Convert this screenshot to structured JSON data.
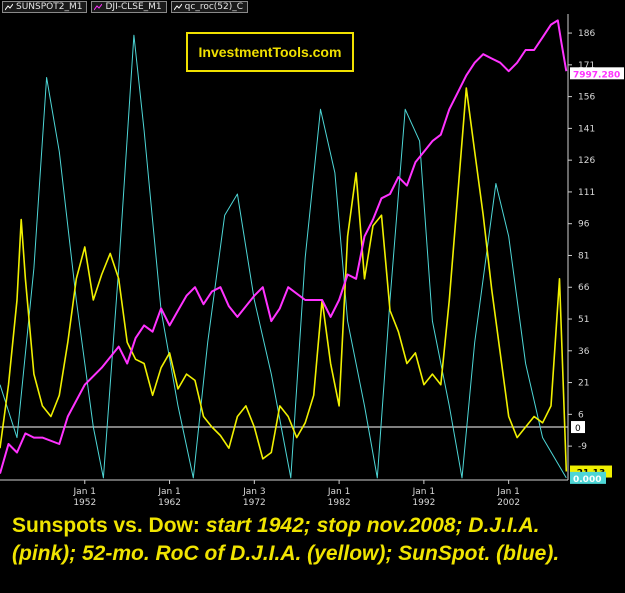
{
  "legend": [
    {
      "label": "SUNSPOT2_M1",
      "color": "#ffffff"
    },
    {
      "label": "DJI-CLSE_M1",
      "color": "#ff33ff"
    },
    {
      "label": "qc_roc(52)_C",
      "color": "#ffffff"
    }
  ],
  "brand": "InvestmentTools.com",
  "caption": {
    "p1": "Sunspots vs. Dow: ",
    "p2": "start 1942; stop nov.2008;  D.J.I.A.",
    "p3": "(pink); 52-mo. RoC of D.J.I.A. (yellow); SunSpot. (blue)."
  },
  "colors": {
    "djia": "#ff33ff",
    "roc": "#f0f000",
    "sunspot": "#4dd6d6",
    "zero": "#ffffff"
  },
  "chart_data": {
    "type": "line",
    "x_tick_labels": [
      {
        "year": 1952,
        "top": "Jan 1",
        "bottom": "1952"
      },
      {
        "year": 1962,
        "top": "Jan 1",
        "bottom": "1962"
      },
      {
        "year": 1972,
        "top": "Jan 3",
        "bottom": "1972"
      },
      {
        "year": 1982,
        "top": "Jan 1",
        "bottom": "1982"
      },
      {
        "year": 1992,
        "top": "Jan 1",
        "bottom": "1992"
      },
      {
        "year": 2002,
        "top": "Jan 1",
        "bottom": "2002"
      }
    ],
    "xlim": [
      1942,
      2009
    ],
    "ylim": [
      -25,
      195
    ],
    "y_ticks": [
      "-9",
      "6",
      "21",
      "36",
      "51",
      "66",
      "81",
      "96",
      "111",
      "126",
      "141",
      "156",
      "171",
      "186"
    ],
    "zero_label": "0",
    "end_labels": [
      {
        "series": "djia",
        "text": "7997.280",
        "y": 167
      },
      {
        "series": "roc",
        "text": "-21.13",
        "y": -21
      },
      {
        "series": "sunspot",
        "text": "0.000",
        "y": -24
      }
    ],
    "series": [
      {
        "key": "djia",
        "x": [
          1942,
          1943,
          1944,
          1945,
          1946,
          1947,
          1949,
          1950,
          1952,
          1954,
          1956,
          1957,
          1958,
          1959,
          1960,
          1961,
          1962,
          1963,
          1964,
          1965,
          1966,
          1967,
          1968,
          1969,
          1970,
          1972,
          1973,
          1974,
          1975,
          1976,
          1978,
          1980,
          1981,
          1982,
          1983,
          1984,
          1985,
          1986,
          1987,
          1988,
          1989,
          1990,
          1991,
          1992,
          1993,
          1994,
          1995,
          1996,
          1997,
          1998,
          1999,
          2000,
          2001,
          2002,
          2003,
          2004,
          2005,
          2006,
          2007,
          2007.8,
          2008.2,
          2008.8
        ],
        "y": [
          -22,
          -8,
          -12,
          -3,
          -5,
          -5,
          -8,
          5,
          20,
          28,
          38,
          30,
          42,
          48,
          45,
          56,
          48,
          55,
          62,
          66,
          58,
          64,
          66,
          57,
          52,
          62,
          66,
          50,
          56,
          66,
          60,
          60,
          52,
          60,
          72,
          70,
          90,
          98,
          108,
          110,
          118,
          114,
          125,
          130,
          135,
          138,
          150,
          158,
          166,
          172,
          176,
          174,
          172,
          168,
          172,
          178,
          178,
          184,
          190,
          192,
          182,
          168
        ]
      },
      {
        "key": "roc",
        "x": [
          1942,
          1943,
          1944,
          1944.5,
          1945,
          1946,
          1947,
          1948,
          1949,
          1950,
          1951,
          1952,
          1953,
          1954,
          1955,
          1956,
          1957,
          1958,
          1959,
          1960,
          1961,
          1962,
          1963,
          1964,
          1965,
          1966,
          1967,
          1968,
          1969,
          1970,
          1971,
          1972,
          1973,
          1974,
          1975,
          1976,
          1977,
          1978,
          1979,
          1980,
          1981,
          1982,
          1983,
          1984,
          1985,
          1986,
          1987,
          1988,
          1989,
          1990,
          1991,
          1992,
          1993,
          1994,
          1995,
          1996,
          1997,
          1998,
          1999,
          2000,
          2001,
          2002,
          2003,
          2004,
          2005,
          2006,
          2007,
          2008,
          2008.8
        ],
        "y": [
          -10,
          20,
          60,
          98,
          70,
          25,
          10,
          5,
          15,
          40,
          70,
          85,
          60,
          72,
          82,
          70,
          40,
          32,
          30,
          15,
          28,
          35,
          18,
          25,
          22,
          5,
          0,
          -4,
          -10,
          5,
          10,
          0,
          -15,
          -12,
          10,
          5,
          -5,
          2,
          15,
          60,
          30,
          10,
          90,
          120,
          70,
          95,
          100,
          55,
          45,
          30,
          35,
          20,
          25,
          20,
          60,
          110,
          160,
          130,
          100,
          65,
          35,
          5,
          -5,
          0,
          5,
          2,
          10,
          70,
          -21
        ]
      },
      {
        "key": "sunspot",
        "x": [
          1942,
          1944,
          1946,
          1947.5,
          1949,
          1951,
          1953,
          1954.2,
          1956,
          1957.8,
          1959,
          1961,
          1963,
          1964.8,
          1966.5,
          1968.5,
          1970,
          1972,
          1974,
          1976.3,
          1978,
          1979.8,
          1981.5,
          1983,
          1985,
          1986.5,
          1988,
          1989.8,
          1991.5,
          1993,
          1995,
          1996.5,
          1998,
          2000.5,
          2002,
          2004,
          2006,
          2008.8
        ],
        "y": [
          20,
          -5,
          75,
          165,
          130,
          60,
          0,
          -24,
          75,
          185,
          140,
          55,
          10,
          -24,
          40,
          100,
          110,
          60,
          25,
          -24,
          80,
          150,
          120,
          50,
          10,
          -24,
          60,
          150,
          135,
          50,
          10,
          -24,
          40,
          115,
          90,
          30,
          -5,
          -24
        ]
      }
    ]
  }
}
